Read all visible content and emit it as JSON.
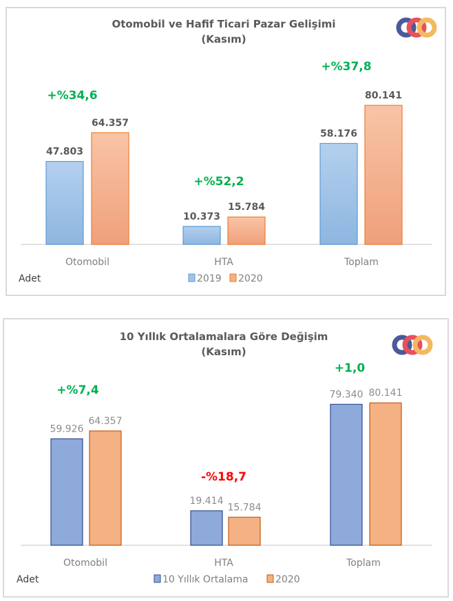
{
  "chart_data": [
    {
      "type": "bar",
      "title": "Otomobil ve Hafif Ticari Pazar Gelişimi",
      "subtitle": "(Kasım)",
      "unit_label": "Adet",
      "categories": [
        "Otomobil",
        "HTA",
        "Toplam"
      ],
      "series": [
        {
          "name": "2019",
          "values": [
            47803,
            10373,
            58176
          ],
          "labels": [
            "47.803",
            "10.373",
            "58.176"
          ],
          "color": "#9dc3e6"
        },
        {
          "name": "2020",
          "values": [
            64357,
            15784,
            80141
          ],
          "labels": [
            "64.357",
            "15.784",
            "80.141"
          ],
          "color": "#f4b183"
        }
      ],
      "change_labels": [
        "+%34,6",
        "+%52,2",
        "+%37,8"
      ],
      "change_colors": [
        "#00b050",
        "#00b050",
        "#00b050"
      ],
      "ylim": [
        0,
        100000
      ],
      "grid": false,
      "legend": "bottom"
    },
    {
      "type": "bar",
      "title": "10 Yıllık Ortalamalara  Göre Değişim",
      "subtitle": "(Kasım)",
      "unit_label": "Adet",
      "categories": [
        "Otomobil",
        "HTA",
        "Toplam"
      ],
      "series": [
        {
          "name": "10 Yıllık Ortalama",
          "values": [
            59926,
            19414,
            79340
          ],
          "labels": [
            "59.926",
            "19.414",
            "79.340"
          ],
          "color": "#8eaadb"
        },
        {
          "name": "2020",
          "values": [
            64357,
            15784,
            80141
          ],
          "labels": [
            "64.357",
            "15.784",
            "80.141"
          ],
          "color": "#f4b183"
        }
      ],
      "change_labels": [
        "+%7,4",
        "-%18,7",
        "+1,0"
      ],
      "change_colors": [
        "#00b050",
        "#ff0000",
        "#00b050"
      ],
      "ylim": [
        0,
        100000
      ],
      "grid": false,
      "legend": "bottom"
    }
  ],
  "logo": {
    "text": "ODD",
    "colors": [
      "#4a5a9a",
      "#e8505b",
      "#f4b860"
    ]
  }
}
